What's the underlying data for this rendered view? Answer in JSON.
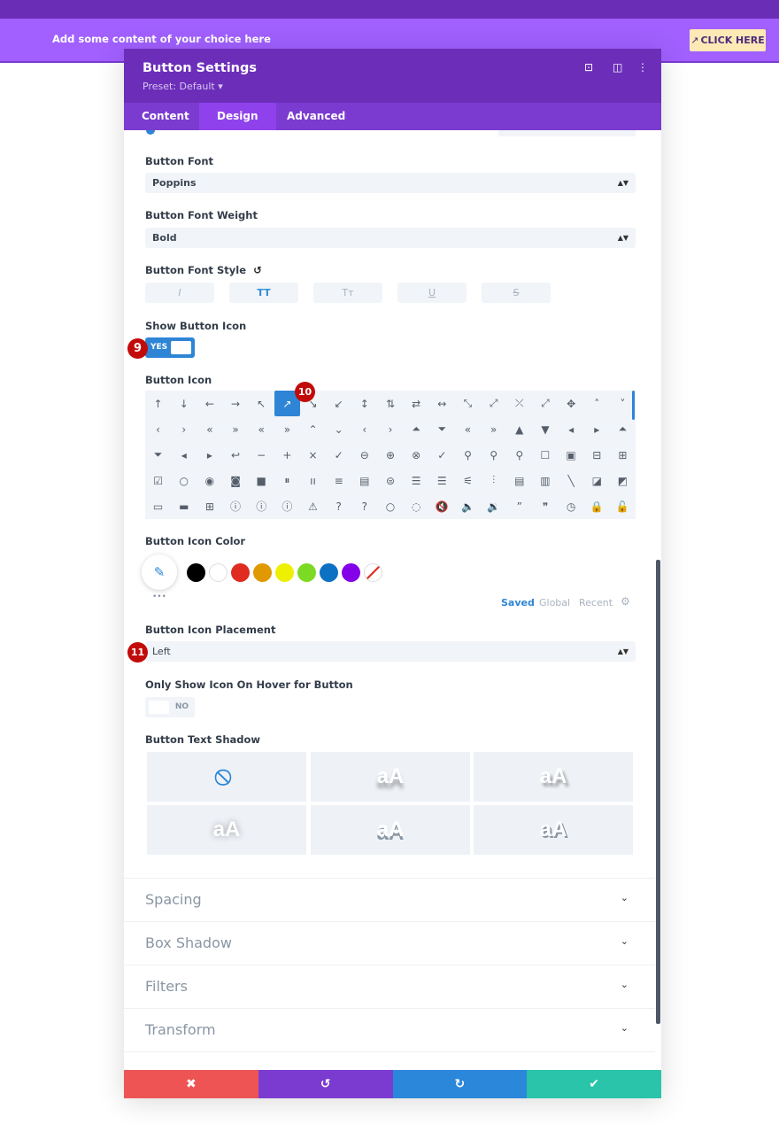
{
  "page": {
    "banner_text": "Add some content of your choice here",
    "cta_label": "CLICK HERE",
    "cta_icon": "↗"
  },
  "panel": {
    "title": "Button Settings",
    "preset": "Preset: Default ▾",
    "header_icons": {
      "focus": "⊡",
      "sidebar": "◫",
      "more": "⋮"
    },
    "tabs": [
      {
        "label": "Content"
      },
      {
        "label": "Design"
      },
      {
        "label": "Advanced"
      }
    ],
    "active_tab": "Design"
  },
  "fields": {
    "font_label": "Button Font",
    "font_value": "Poppins",
    "weight_label": "Button Font Weight",
    "weight_value": "Bold",
    "style_label": "Button Font Style",
    "style_reset": "↺",
    "style_buttons": [
      {
        "label": "I",
        "active": false
      },
      {
        "label": "TT",
        "active": true
      },
      {
        "label": "Tт",
        "active": false
      },
      {
        "label": "U",
        "active": false
      },
      {
        "label": "S",
        "active": false
      }
    ],
    "show_icon_label": "Show Button Icon",
    "show_icon_value": "YES",
    "icon_label": "Button Icon",
    "selected_icon": "↗",
    "icons": [
      "↑",
      "↓",
      "←",
      "→",
      "↖",
      "↗",
      "↘",
      "↙",
      "↕",
      "⇅",
      "⇄",
      "↔",
      "⤡",
      "⤢",
      "⤫",
      "⤢",
      "✥",
      "˄",
      "˅",
      "‹",
      "›",
      "«",
      "»",
      "«",
      "»",
      "⌃",
      "⌄",
      "‹",
      "›",
      "⏶",
      "⏷",
      "«",
      "»",
      "▲",
      "▼",
      "◂",
      "▸",
      "⏶",
      "⏷",
      "◂",
      "▸",
      "↩",
      "−",
      "+",
      "×",
      "✓",
      "⊖",
      "⊕",
      "⊗",
      "✓",
      "⚲",
      "⚲",
      "⚲",
      "☐",
      "▣",
      "⊟",
      "⊞",
      "☑",
      "○",
      "◉",
      "◙",
      "■",
      "⏸",
      "ıı",
      "≡",
      "▤",
      "⊜",
      "☰",
      "☰",
      "⚟",
      "⫶",
      "▤",
      "▥",
      "╲",
      "◪",
      "◩",
      "▭",
      "▬",
      "⊞",
      "ⓘ",
      "ⓘ",
      "ⓘ",
      "⚠",
      "?",
      "?",
      "○",
      "◌",
      "🔇",
      "🔈",
      "🔉",
      "”",
      "❞",
      "◷",
      "🔒",
      "🔓"
    ],
    "icon_color_label": "Button Icon Color",
    "color_tabs": [
      "Saved",
      "Global",
      "Recent"
    ],
    "color_more": "•••",
    "swatches": [
      "#000000",
      "#ffffff",
      "#e02b20",
      "#e09900",
      "#edf000",
      "#7cda24",
      "#0c71c3",
      "#8300e9",
      "none"
    ],
    "placement_label": "Button Icon Placement",
    "placement_value": "Left",
    "hover_label": "Only Show Icon On Hover for Button",
    "hover_value": "NO",
    "shadow_label": "Button Text Shadow",
    "shadow_sample": "aA"
  },
  "sections": [
    "Spacing",
    "Box Shadow",
    "Filters",
    "Transform"
  ],
  "badges": [
    "9",
    "10",
    "11"
  ],
  "footer": {
    "cancel": "✖",
    "undo": "↺",
    "redo": "↻",
    "save": "✔"
  },
  "colors": {
    "header": "#6c2eb9",
    "tabs": "#7b3bd0",
    "accent": "#2e85d6",
    "cancel": "#ef5454",
    "undo": "#7b3bd0",
    "redo": "#2b87da",
    "save": "#29c4a9"
  }
}
